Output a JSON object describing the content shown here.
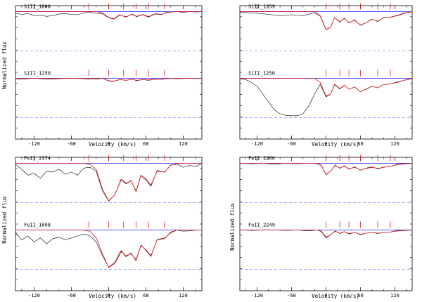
{
  "figure": {
    "xlabel_left": "Velocity (km/s)",
    "xlabel_right": "Velocity (km/s)",
    "ylabel_left": "Normalized flux",
    "ylabel_right": "Normalized flux",
    "xticks": [
      "-120",
      "-60",
      "0",
      "60",
      "120"
    ]
  },
  "chart_data": [
    {
      "type": "line",
      "position": "top-left",
      "xlim": [
        -150,
        150
      ],
      "xlabel": "Velocity (km/s)",
      "ylabel": "Normalized flux",
      "component_velocities": [
        -32,
        0,
        24,
        44,
        64,
        90
      ],
      "colors": {
        "data": "#000000",
        "model": "#e8141e",
        "continuum": "#3a3aff",
        "zero": "#8888ff",
        "ticks": "#e8141e"
      },
      "subpanels": [
        {
          "label": "SiII_1808",
          "model": {
            "x": [
              -150,
              -20,
              -10,
              0,
              8,
              18,
              28,
              38,
              45,
              55,
              64,
              75,
              85,
              92,
              100,
              110,
              150
            ],
            "y": [
              1,
              1,
              0.97,
              0.85,
              0.82,
              0.92,
              0.86,
              0.94,
              0.88,
              0.93,
              0.87,
              0.95,
              0.93,
              0.97,
              0.99,
              1,
              1
            ]
          },
          "data": {
            "x": [
              -150,
              -140,
              -130,
              -120,
              -110,
              -100,
              -90,
              -80,
              -70,
              -60,
              -50,
              -40,
              -30,
              -20,
              -10,
              0,
              8,
              18,
              28,
              38,
              45,
              55,
              64,
              75,
              85,
              92,
              100,
              110,
              120,
              130,
              140,
              150
            ],
            "y": [
              0.96,
              0.93,
              0.95,
              0.9,
              0.91,
              0.88,
              0.9,
              0.94,
              0.95,
              0.93,
              0.92,
              0.97,
              0.98,
              0.96,
              0.95,
              0.84,
              0.81,
              0.91,
              0.87,
              0.93,
              0.87,
              0.92,
              0.86,
              0.94,
              0.92,
              0.98,
              0.99,
              1.0,
              0.98,
              1.0,
              0.99,
              1.0
            ]
          }
        },
        {
          "label": "SiII_1250",
          "model": {
            "x": [
              -150,
              -10,
              0,
              8,
              18,
              28,
              38,
              45,
              55,
              64,
              75,
              85,
              92,
              110,
              150
            ],
            "y": [
              1,
              1,
              0.94,
              0.93,
              0.97,
              0.95,
              0.98,
              0.95,
              0.97,
              0.96,
              0.98,
              0.97,
              0.99,
              1,
              1
            ]
          },
          "data": {
            "x": [
              -150,
              -140,
              -120,
              -100,
              -80,
              -60,
              -40,
              -20,
              -10,
              0,
              8,
              18,
              28,
              38,
              45,
              55,
              64,
              75,
              85,
              92,
              110,
              130,
              150
            ],
            "y": [
              0.99,
              0.98,
              1.0,
              0.98,
              0.99,
              1.0,
              0.99,
              0.98,
              1.0,
              0.93,
              0.92,
              0.97,
              0.95,
              0.98,
              0.94,
              0.97,
              0.95,
              0.98,
              0.97,
              1.0,
              0.99,
              1.0,
              1.0
            ]
          }
        }
      ]
    },
    {
      "type": "line",
      "position": "top-right",
      "xlim": [
        -150,
        150
      ],
      "xlabel": "Velocity (km/s)",
      "ylabel": "",
      "component_velocities": [
        0,
        24,
        40,
        60,
        90,
        112
      ],
      "colors": {
        "data": "#000000",
        "model": "#e8141e",
        "continuum": "#3a3aff",
        "zero": "#8888ff",
        "ticks": "#e8141e"
      },
      "subpanels": [
        {
          "label": "SiII_1259",
          "model": {
            "x": [
              -150,
              -20,
              -10,
              0,
              8,
              15,
              24,
              32,
              40,
              50,
              60,
              70,
              80,
              90,
              100,
              112,
              125,
              135,
              150
            ],
            "y": [
              1,
              1,
              0.9,
              0.55,
              0.6,
              0.85,
              0.74,
              0.83,
              0.72,
              0.78,
              0.66,
              0.72,
              0.8,
              0.76,
              0.84,
              0.86,
              0.9,
              0.95,
              1
            ]
          },
          "data": {
            "x": [
              -150,
              -135,
              -120,
              -100,
              -80,
              -60,
              -40,
              -20,
              -10,
              0,
              8,
              15,
              24,
              32,
              40,
              50,
              60,
              70,
              80,
              90,
              100,
              112,
              125,
              135,
              150
            ],
            "y": [
              0.98,
              0.97,
              0.96,
              0.93,
              0.9,
              0.92,
              0.9,
              0.97,
              0.88,
              0.54,
              0.6,
              0.85,
              0.73,
              0.84,
              0.71,
              0.79,
              0.65,
              0.72,
              0.81,
              0.75,
              0.85,
              0.86,
              0.91,
              0.96,
              1.0
            ]
          }
        },
        {
          "label": "SiII_1250",
          "model": {
            "x": [
              -150,
              -20,
              -10,
              0,
              8,
              15,
              24,
              32,
              40,
              50,
              60,
              70,
              80,
              90,
              100,
              112,
              125,
              135,
              150
            ],
            "y": [
              1,
              1,
              0.9,
              0.55,
              0.6,
              0.85,
              0.74,
              0.83,
              0.72,
              0.78,
              0.66,
              0.72,
              0.8,
              0.76,
              0.84,
              0.86,
              0.9,
              0.95,
              1
            ]
          },
          "data": {
            "x": [
              -150,
              -140,
              -130,
              -120,
              -110,
              -100,
              -90,
              -80,
              -70,
              -60,
              -50,
              -40,
              -30,
              -20,
              -10,
              0,
              8,
              15,
              24,
              32,
              40,
              50,
              60,
              70,
              80,
              90,
              100,
              112,
              125,
              135,
              150
            ],
            "y": [
              0.99,
              0.97,
              0.9,
              0.8,
              0.6,
              0.4,
              0.2,
              0.1,
              0.06,
              0.05,
              0.05,
              0.1,
              0.3,
              0.6,
              0.85,
              0.53,
              0.6,
              0.84,
              0.73,
              0.83,
              0.72,
              0.78,
              0.66,
              0.73,
              0.8,
              0.76,
              0.84,
              0.86,
              0.91,
              0.95,
              0.99
            ]
          }
        }
      ]
    },
    {
      "type": "line",
      "position": "bottom-left",
      "xlim": [
        -150,
        150
      ],
      "xlabel": "Velocity (km/s)",
      "ylabel": "Normalized flux",
      "component_velocities": [
        -32,
        0,
        24,
        44,
        64,
        90
      ],
      "colors": {
        "data": "#000000",
        "model": "#e8141e",
        "continuum": "#3a3aff",
        "zero": "#8888ff",
        "ticks": "#e8141e"
      },
      "subpanels": [
        {
          "label": "FeII_2374",
          "model": {
            "x": [
              -150,
              -40,
              -30,
              -20,
              -10,
              0,
              10,
              20,
              28,
              36,
              44,
              52,
              60,
              68,
              78,
              90,
              100,
              110,
              150
            ],
            "y": [
              1,
              1,
              0.97,
              0.85,
              0.35,
              0.05,
              0.2,
              0.6,
              0.5,
              0.55,
              0.3,
              0.7,
              0.6,
              0.45,
              0.8,
              0.78,
              0.95,
              1,
              1
            ]
          },
          "data": {
            "x": [
              -150,
              -140,
              -130,
              -120,
              -110,
              -100,
              -90,
              -80,
              -70,
              -60,
              -50,
              -40,
              -30,
              -20,
              -10,
              0,
              10,
              20,
              28,
              36,
              44,
              52,
              60,
              68,
              78,
              90,
              100,
              110,
              120,
              130,
              140,
              150
            ],
            "y": [
              0.98,
              0.85,
              0.7,
              0.75,
              0.62,
              0.8,
              0.78,
              0.85,
              0.72,
              0.78,
              0.7,
              0.88,
              0.9,
              0.8,
              0.3,
              0.04,
              0.2,
              0.58,
              0.48,
              0.56,
              0.28,
              0.69,
              0.58,
              0.42,
              0.82,
              0.77,
              0.96,
              0.98,
              0.9,
              0.95,
              0.92,
              1.0
            ]
          }
        },
        {
          "label": "FeII_1608",
          "model": {
            "x": [
              -150,
              -40,
              -30,
              -20,
              -10,
              0,
              10,
              20,
              28,
              36,
              44,
              52,
              60,
              68,
              78,
              90,
              100,
              110,
              150
            ],
            "y": [
              1,
              1,
              0.97,
              0.8,
              0.4,
              0.05,
              0.15,
              0.45,
              0.35,
              0.4,
              0.25,
              0.6,
              0.5,
              0.35,
              0.75,
              0.78,
              0.95,
              1,
              1
            ]
          },
          "data": {
            "x": [
              -150,
              -140,
              -130,
              -120,
              -110,
              -100,
              -90,
              -80,
              -70,
              -60,
              -50,
              -40,
              -30,
              -20,
              -10,
              0,
              10,
              20,
              28,
              36,
              44,
              52,
              60,
              68,
              78,
              90,
              100,
              110,
              120,
              130,
              140,
              150
            ],
            "y": [
              0.95,
              0.75,
              0.85,
              0.7,
              0.8,
              0.65,
              0.78,
              0.82,
              0.75,
              0.8,
              0.85,
              0.9,
              0.85,
              0.7,
              0.35,
              0.06,
              0.18,
              0.48,
              0.32,
              0.42,
              0.22,
              0.62,
              0.48,
              0.33,
              0.76,
              0.8,
              0.93,
              1.0,
              0.97,
              0.98,
              1.0,
              1.0
            ]
          }
        }
      ]
    },
    {
      "type": "line",
      "position": "bottom-right",
      "xlim": [
        -150,
        150
      ],
      "xlabel": "Velocity (km/s)",
      "ylabel": "Normalized flux",
      "component_velocities": [
        0,
        24,
        40,
        60,
        90,
        112
      ],
      "colors": {
        "data": "#000000",
        "model": "#e8141e",
        "continuum": "#3a3aff",
        "zero": "#8888ff",
        "ticks": "#e8141e"
      },
      "subpanels": [
        {
          "label": "FeII_2260",
          "model": {
            "x": [
              -150,
              -15,
              -8,
              0,
              8,
              16,
              24,
              32,
              40,
              50,
              60,
              70,
              80,
              90,
              100,
              112,
              125,
              150
            ],
            "y": [
              1,
              1,
              0.95,
              0.72,
              0.8,
              0.95,
              0.88,
              0.93,
              0.86,
              0.9,
              0.83,
              0.87,
              0.9,
              0.87,
              0.9,
              0.92,
              0.97,
              1
            ]
          },
          "data": {
            "x": [
              -150,
              -130,
              -110,
              -90,
              -70,
              -50,
              -30,
              -15,
              -8,
              0,
              8,
              16,
              24,
              32,
              40,
              50,
              60,
              70,
              80,
              90,
              100,
              112,
              125,
              140,
              150
            ],
            "y": [
              1.0,
              0.99,
              1.0,
              0.98,
              1.0,
              0.99,
              1.0,
              0.99,
              0.94,
              0.71,
              0.8,
              0.96,
              0.87,
              0.94,
              0.85,
              0.91,
              0.82,
              0.88,
              0.91,
              0.86,
              0.9,
              0.92,
              0.98,
              1.0,
              1.0
            ]
          }
        },
        {
          "label": "FeII_2249",
          "model": {
            "x": [
              -150,
              -15,
              -8,
              0,
              8,
              16,
              24,
              32,
              40,
              50,
              60,
              70,
              80,
              90,
              100,
              112,
              125,
              150
            ],
            "y": [
              1,
              1,
              0.97,
              0.82,
              0.88,
              0.97,
              0.92,
              0.96,
              0.91,
              0.94,
              0.89,
              0.92,
              0.94,
              0.92,
              0.94,
              0.95,
              0.98,
              1
            ]
          },
          "data": {
            "x": [
              -150,
              -130,
              -110,
              -90,
              -70,
              -50,
              -30,
              -15,
              -8,
              0,
              8,
              16,
              24,
              32,
              40,
              50,
              60,
              70,
              80,
              90,
              100,
              112,
              125,
              140,
              150
            ],
            "y": [
              1.0,
              0.99,
              1.0,
              1.0,
              0.99,
              1.0,
              0.98,
              1.0,
              0.96,
              0.8,
              0.88,
              0.98,
              0.91,
              0.96,
              0.9,
              0.94,
              0.88,
              0.92,
              0.94,
              0.91,
              0.94,
              0.95,
              0.99,
              1.0,
              1.0
            ]
          }
        }
      ]
    }
  ]
}
